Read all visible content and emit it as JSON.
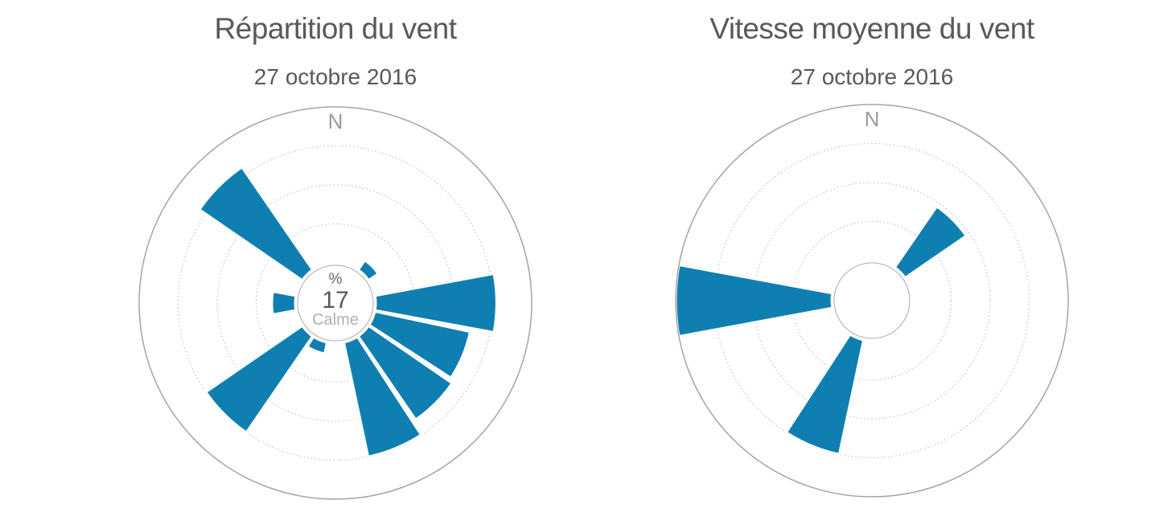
{
  "colors": {
    "wedge_fill": "#0e7fb0",
    "wedge_border": "#ffffff",
    "outer_circle": "#a5a5a5",
    "gridline": "#c4c4c4",
    "inner_circle_border": "#ababab",
    "title_text": "#595959",
    "north_text": "#9b9b9b",
    "center_unit_text": "#666666",
    "center_value_text": "#58585a",
    "center_caption_text": "#b0b0b0"
  },
  "chart_data": [
    {
      "id": "wind-direction-distribution",
      "type": "wind_rose",
      "title": "Répartition du vent",
      "subtitle": "27 octobre 2016",
      "north_label": "N",
      "units": "%",
      "calm_center": {
        "unit_label": "%",
        "value": "17",
        "caption": "Calme"
      },
      "categories": [
        "N",
        "NNE",
        "NE",
        "ENE",
        "E",
        "ESE",
        "SE",
        "SSE",
        "S",
        "SSW",
        "SW",
        "WSW",
        "W",
        "WNW",
        "NW",
        "NNW"
      ],
      "degrees": [
        0,
        22.5,
        45,
        67.5,
        90,
        112.5,
        135,
        157.5,
        180,
        202.5,
        225,
        247.5,
        270,
        292.5,
        315,
        337.5
      ],
      "values": [
        0,
        0,
        1.5,
        0,
        15.5,
        12.5,
        13,
        15,
        0,
        1.5,
        15,
        0,
        3,
        0,
        16,
        0
      ],
      "sector_width_deg": 21,
      "radial_axis": {
        "min": 0,
        "max": 20,
        "gridlines": [
          5,
          10,
          15
        ],
        "grid_style": "dotted",
        "outer_border_value": 20
      },
      "legend": "none"
    },
    {
      "id": "wind-mean-speed",
      "type": "wind_rose",
      "title": "Vitesse moyenne du vent",
      "subtitle": "27 octobre 2016",
      "north_label": "N",
      "units": "",
      "calm_center": null,
      "categories": [
        "N",
        "NNE",
        "NE",
        "ENE",
        "E",
        "ESE",
        "SE",
        "SSE",
        "S",
        "SSW",
        "SW",
        "WSW",
        "W",
        "WNW",
        "NW",
        "NNW"
      ],
      "degrees": [
        0,
        22.5,
        45,
        67.5,
        90,
        112.5,
        135,
        157.5,
        180,
        202.5,
        225,
        247.5,
        270,
        292.5,
        315,
        337.5
      ],
      "values": [
        0,
        0,
        9.5,
        0,
        0,
        0,
        0,
        0,
        0,
        15,
        0,
        0,
        20,
        0,
        0,
        0
      ],
      "sector_width_deg": 21,
      "radial_axis": {
        "min": 0,
        "max": 20,
        "gridlines": [
          5,
          10,
          15
        ],
        "grid_style": "dotted",
        "outer_border_value": 20
      },
      "legend": "none"
    }
  ]
}
